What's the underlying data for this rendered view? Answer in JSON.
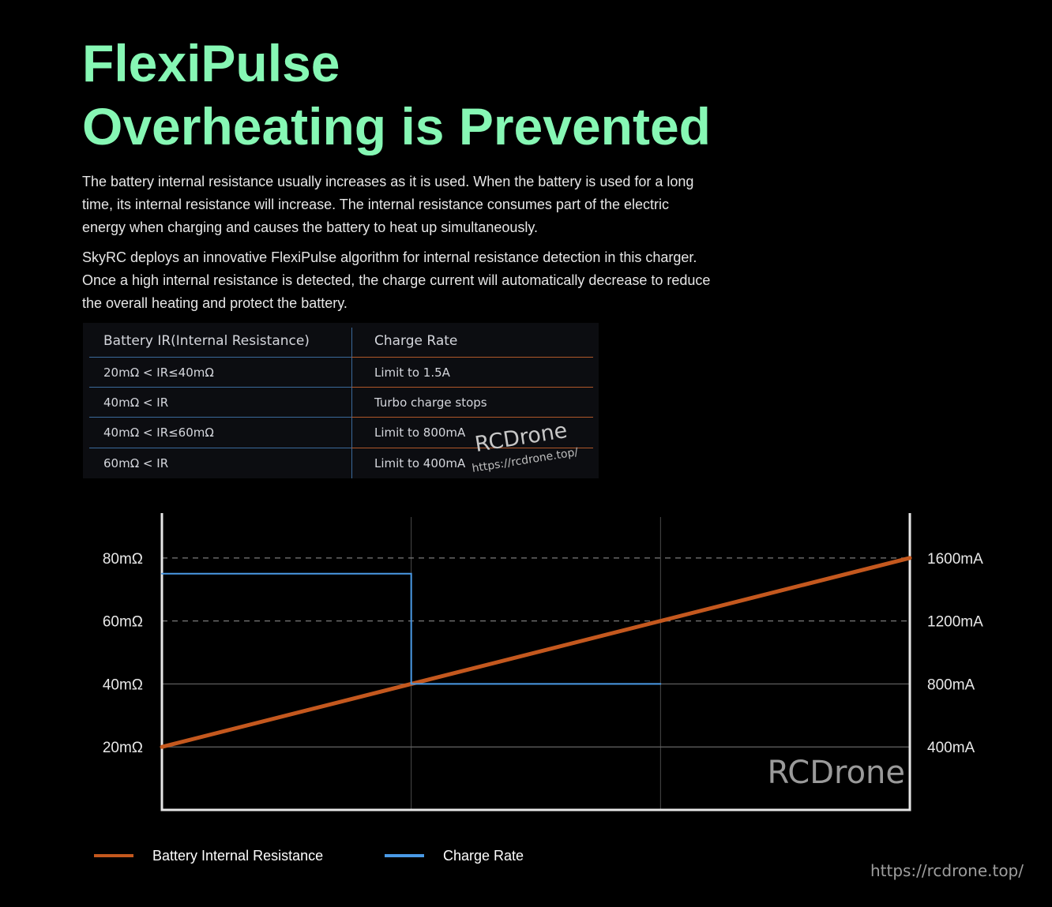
{
  "title": {
    "line1": "FlexiPulse",
    "line2": "Overheating is Prevented"
  },
  "paragraphs": [
    "The battery internal resistance usually increases as it is used. When the battery is used for a long time, its internal resistance will increase. The internal resistance consumes part of the electric energy when charging and causes the battery to heat up simultaneously.",
    "SkyRC deploys an innovative FlexiPulse algorithm for internal resistance detection in this charger. Once a high internal resistance is detected, the charge current will automatically decrease to reduce the overall heating and protect the battery."
  ],
  "ir_table": {
    "headers": [
      "Battery IR(Internal Resistance)",
      "Charge Rate"
    ],
    "rows": [
      [
        "20mΩ < IR≤40mΩ",
        "Limit to 1.5A"
      ],
      [
        "40mΩ < IR",
        "Turbo charge stops"
      ],
      [
        "40mΩ < IR≤60mΩ",
        "Limit to 800mA"
      ],
      [
        "60mΩ < IR",
        "Limit to 400mA"
      ]
    ],
    "colors": {
      "left_line": "#3b6a9b",
      "right_line": "#b0582a"
    }
  },
  "watermarks": {
    "table_brand": "RCDrone",
    "table_url": "https://rcdrone.top/",
    "chart_brand": "RCDrone",
    "footer_url": "https://rcdrone.top/"
  },
  "chart_data": {
    "type": "line",
    "title": "",
    "xlabel": "",
    "ylabel": "",
    "y_left": {
      "ticks": [
        20,
        40,
        60,
        80
      ],
      "tick_labels": [
        "20mΩ",
        "40mΩ",
        "60mΩ",
        "80mΩ"
      ],
      "range": [
        0,
        93
      ]
    },
    "y_right": {
      "ticks": [
        400,
        800,
        1200,
        1600
      ],
      "tick_labels": [
        "400mA",
        "800mA",
        "1200mA",
        "1600mA"
      ],
      "range": [
        0,
        1860
      ]
    },
    "x_range": [
      0,
      3
    ],
    "grid": {
      "vertical_at": [
        1,
        2
      ],
      "dashed_at_left": [
        60,
        80
      ],
      "solid_at_left": [
        20,
        40
      ]
    },
    "series": [
      {
        "name": "Battery Internal Resistance",
        "axis": "left",
        "color": "#c4581e",
        "points": [
          [
            0,
            20
          ],
          [
            3,
            80
          ]
        ]
      },
      {
        "name": "Charge Rate",
        "axis": "right",
        "color": "#4a9ae6",
        "points": [
          [
            0,
            1500
          ],
          [
            1,
            1500
          ],
          [
            1,
            800
          ],
          [
            2,
            800
          ]
        ]
      }
    ],
    "legend": "bottom-left"
  }
}
